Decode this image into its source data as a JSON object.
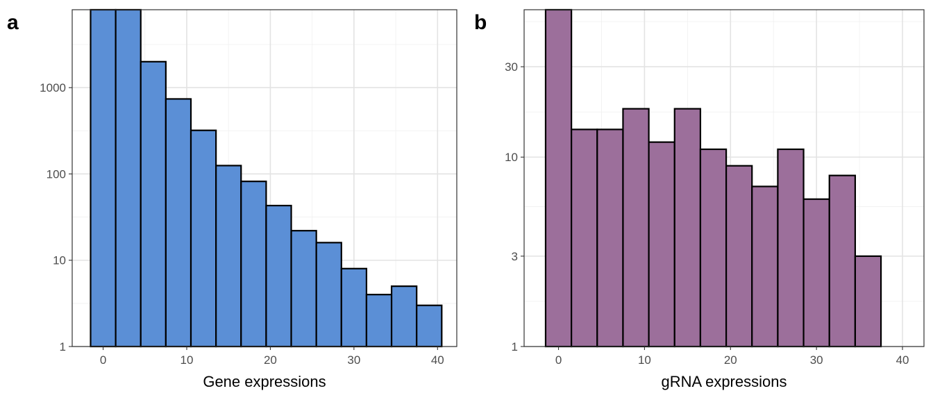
{
  "chart_data": [
    {
      "type": "bar",
      "panel_label": "a",
      "xlabel": "Gene expressions",
      "ylabel": "",
      "y_scale": "log10",
      "ylim": [
        1,
        8000
      ],
      "xlim": [
        -3.7,
        42.3
      ],
      "x_ticks": [
        0,
        10,
        20,
        30,
        40
      ],
      "y_ticks": [
        1,
        10,
        100,
        1000
      ],
      "y_tick_labels": [
        "1",
        "10",
        "100",
        "1000"
      ],
      "bin_width": 3,
      "bin_centers": [
        0,
        3,
        6,
        9,
        12,
        15,
        18,
        21,
        24,
        27,
        30,
        33,
        36,
        39
      ],
      "values": [
        8000,
        8000,
        2000,
        740,
        320,
        125,
        82,
        43,
        22,
        16,
        8,
        4,
        5,
        3
      ],
      "fill_color": "#5b8fd6",
      "outline_color": "#000000",
      "grid": true
    },
    {
      "type": "bar",
      "panel_label": "b",
      "xlabel": "gRNA expressions",
      "ylabel": "",
      "y_scale": "log10",
      "ylim": [
        1,
        60
      ],
      "xlim": [
        -4,
        42.5
      ],
      "x_ticks": [
        0,
        10,
        20,
        30,
        40
      ],
      "y_ticks": [
        1,
        3,
        10,
        30
      ],
      "y_tick_labels": [
        "1",
        "3",
        "10",
        "30"
      ],
      "bin_width": 3,
      "bin_centers": [
        0,
        3,
        6,
        9,
        12,
        15,
        18,
        21,
        24,
        27,
        30,
        33,
        36
      ],
      "values": [
        60,
        14,
        14,
        18,
        12,
        18,
        11,
        9,
        7,
        11,
        6,
        8,
        3
      ],
      "fill_color": "#9c6f9b",
      "outline_color": "#000000",
      "grid": true
    }
  ]
}
